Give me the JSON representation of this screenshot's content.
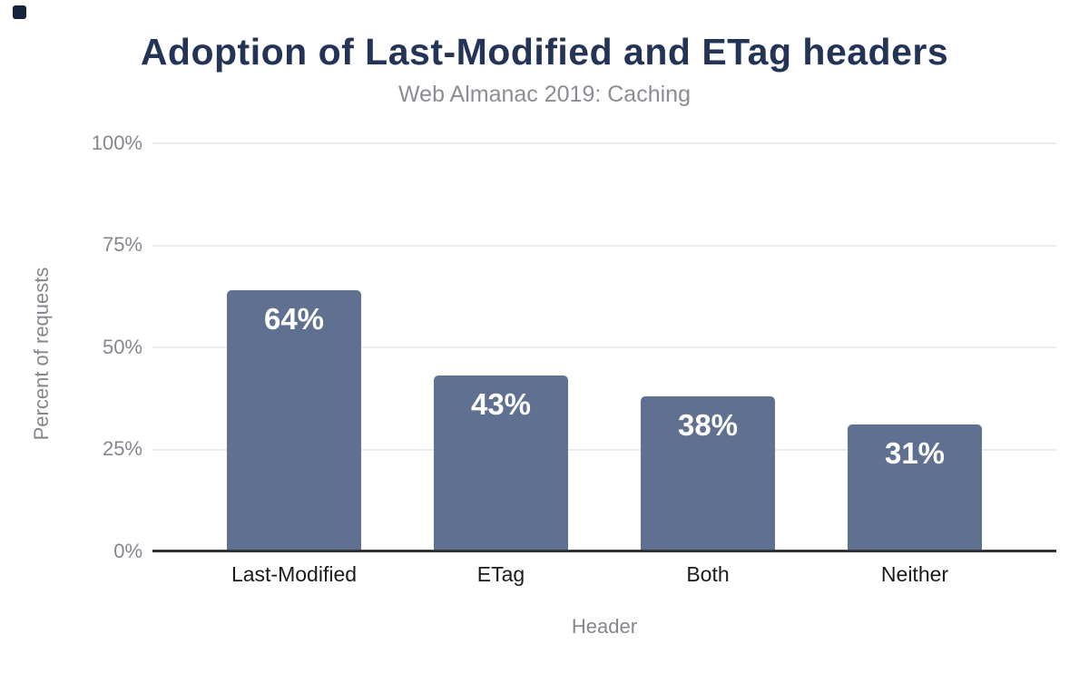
{
  "header": {
    "title": "Adoption of Last-Modified and ETag headers",
    "subtitle": "Web Almanac 2019: Caching"
  },
  "chart_data": {
    "type": "bar",
    "title": "Adoption of Last-Modified and ETag headers",
    "subtitle": "Web Almanac 2019: Caching",
    "xlabel": "Header",
    "ylabel": "Percent of requests",
    "categories": [
      "Last-Modified",
      "ETag",
      "Both",
      "Neither"
    ],
    "values": [
      64,
      43,
      38,
      31
    ],
    "value_labels": [
      "64%",
      "43%",
      "38%",
      "31%"
    ],
    "yticks": [
      {
        "value": 100,
        "label": "100%"
      },
      {
        "value": 75,
        "label": "75%"
      },
      {
        "value": 50,
        "label": "50%"
      },
      {
        "value": 25,
        "label": "25%"
      },
      {
        "value": 0,
        "label": "0%"
      }
    ],
    "ylim": [
      0,
      100
    ],
    "grid": true,
    "legend_position": "none",
    "bar_color": "#5f7090",
    "value_label_color": "#ffffff"
  },
  "colors": {
    "title": "#233457",
    "subtitle": "#8b8d93",
    "axis_text": "#85878f",
    "category_text": "#1b1b1b",
    "bar": "#5f7090",
    "gridline": "#ececec",
    "axis_line": "#2f3237",
    "corner_mark": "#16243d"
  }
}
